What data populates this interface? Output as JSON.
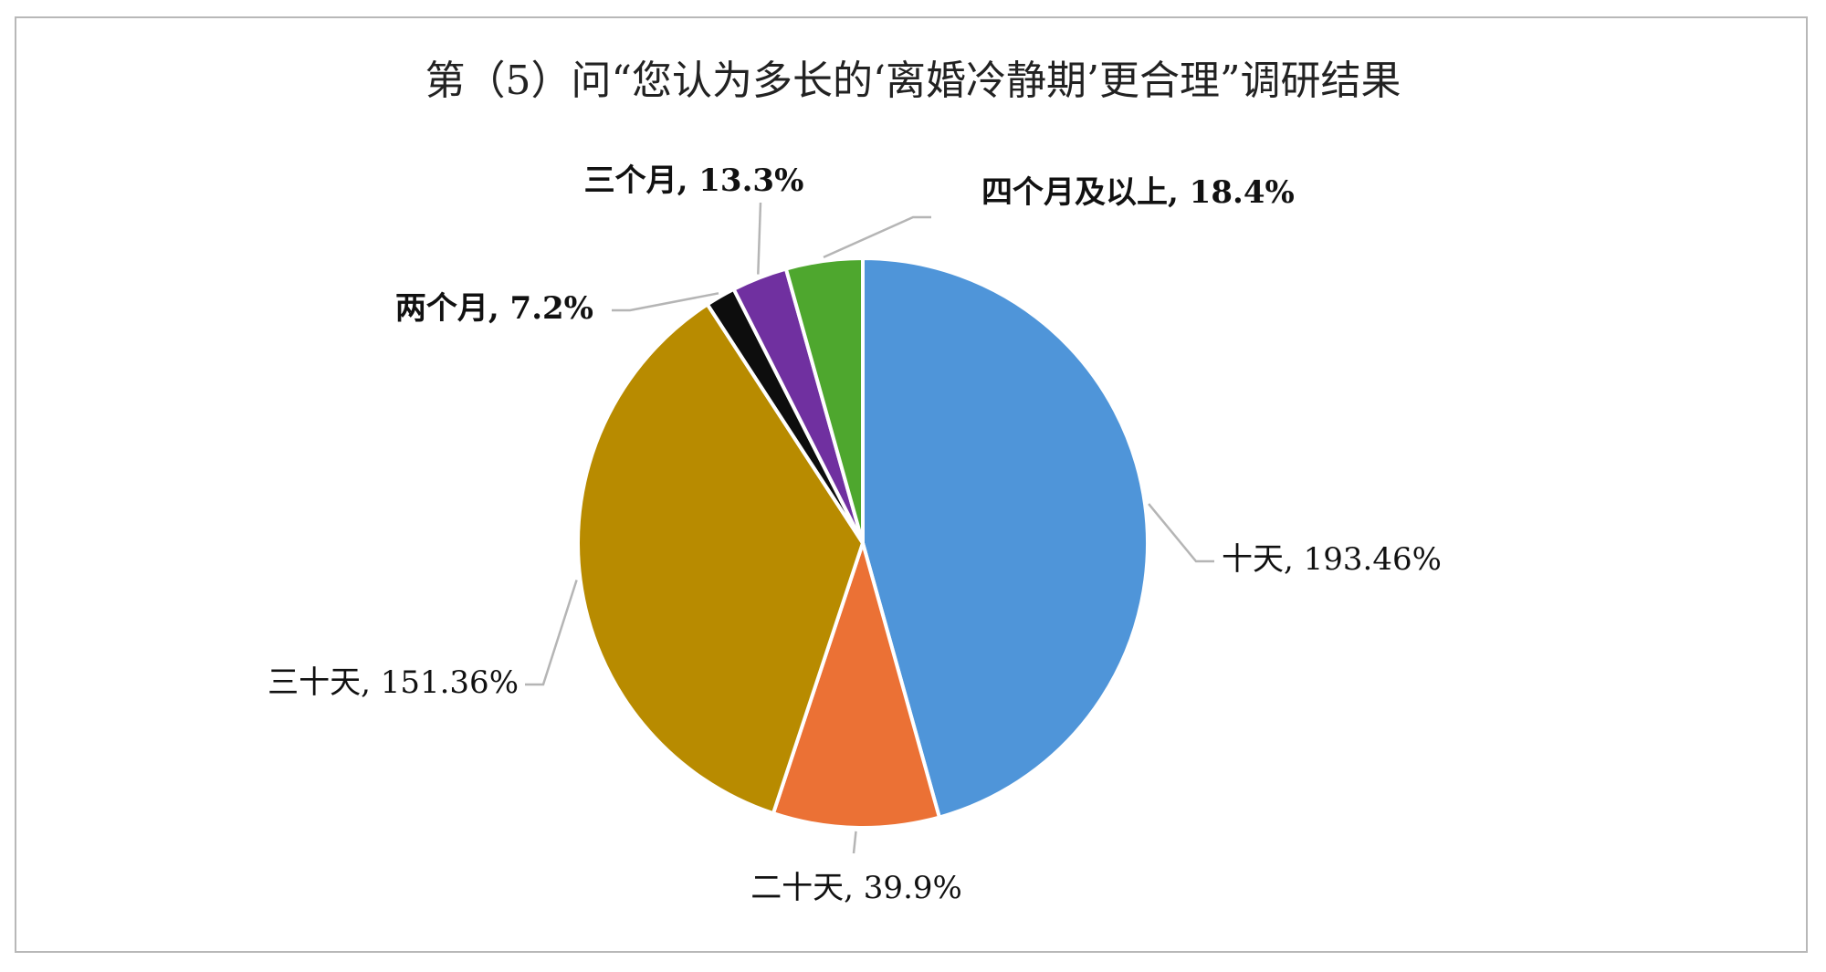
{
  "chart_data": {
    "type": "pie",
    "title": "第（5）问“您认为多长的‘离婚冷静期’更合理”调研结果",
    "slices": [
      {
        "label": "十天",
        "display": "十天, 193.46%",
        "value": 193.46,
        "color": "#4f95d9",
        "bold": false
      },
      {
        "label": "二十天",
        "display": "二十天, 39.9%",
        "value": 39.9,
        "color": "#eb7135",
        "bold": false
      },
      {
        "label": "三十天",
        "display": "三十天, 151.36%",
        "value": 151.36,
        "color": "#b88b00",
        "bold": false
      },
      {
        "label": "两个月",
        "display": "两个月, 7.2%",
        "value": 7.2,
        "color": "#0d0d0d",
        "bold": true
      },
      {
        "label": "三个月",
        "display": "三个月, 13.3%",
        "value": 13.3,
        "color": "#7030a0",
        "bold": true
      },
      {
        "label": "四个月及以上",
        "display": "四个月及以上, 18.4%",
        "value": 18.4,
        "color": "#4ea72e",
        "bold": true
      }
    ],
    "start_angle_deg": 0,
    "direction": "clockwise",
    "legend": "none"
  }
}
